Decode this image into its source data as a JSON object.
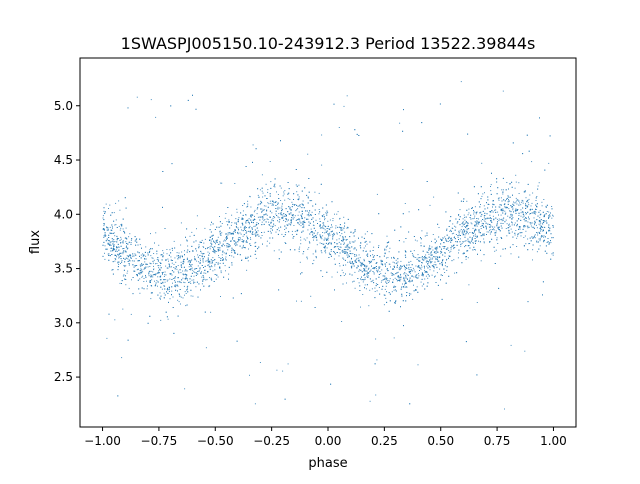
{
  "chart_data": {
    "type": "scatter",
    "title": "1SWASPJ005150.10-243912.3 Period 13522.39844s",
    "xlabel": "phase",
    "ylabel": "flux",
    "xlim": [
      -1.1,
      1.1
    ],
    "ylim": [
      2.04,
      5.44
    ],
    "xticks": [
      -1.0,
      -0.75,
      -0.5,
      -0.25,
      0.0,
      0.25,
      0.5,
      0.75,
      1.0
    ],
    "xtick_labels": [
      "−1.00",
      "−0.75",
      "−0.50",
      "−0.25",
      "0.00",
      "0.25",
      "0.50",
      "0.75",
      "1.00"
    ],
    "yticks": [
      2.5,
      3.0,
      3.5,
      4.0,
      4.5,
      5.0
    ],
    "ytick_labels": [
      "2.5",
      "3.0",
      "3.5",
      "4.0",
      "4.5",
      "5.0"
    ],
    "grid": false,
    "point_color": "#1f77b4",
    "binned_phase": [
      -1.0,
      -0.9,
      -0.8,
      -0.7,
      -0.6,
      -0.5,
      -0.4,
      -0.3,
      -0.2,
      -0.1,
      0.0,
      0.1,
      0.2,
      0.3,
      0.4,
      0.5,
      0.6,
      0.7,
      0.8,
      0.9,
      1.0
    ],
    "binned_flux": [
      3.82,
      3.64,
      3.5,
      3.44,
      3.5,
      3.64,
      3.82,
      3.96,
      4.02,
      3.96,
      3.82,
      3.64,
      3.5,
      3.44,
      3.5,
      3.64,
      3.82,
      3.96,
      4.02,
      3.96,
      3.82
    ],
    "scatter_sigma": 0.15,
    "n_points": 5000,
    "outlier_range": [
      2.2,
      5.3
    ]
  }
}
